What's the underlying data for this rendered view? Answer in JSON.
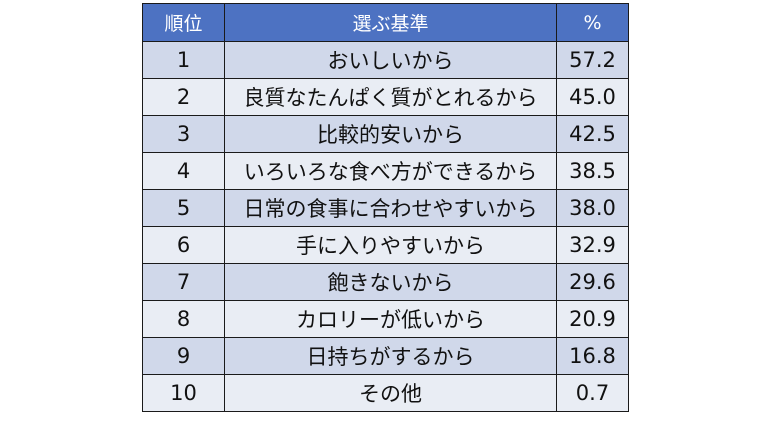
{
  "chart_data": {
    "type": "table",
    "columns": [
      "順位",
      "選ぶ基準",
      "%"
    ],
    "rows": [
      {
        "rank": "1",
        "reason": "おいしいから",
        "pct": "57.2"
      },
      {
        "rank": "2",
        "reason": "良質なたんぱく質がとれるから",
        "pct": "45.0"
      },
      {
        "rank": "3",
        "reason": "比較的安いから",
        "pct": "42.5"
      },
      {
        "rank": "4",
        "reason": "いろいろな食べ方ができるから",
        "pct": "38.5"
      },
      {
        "rank": "5",
        "reason": "日常の食事に合わせやすいから",
        "pct": "38.0"
      },
      {
        "rank": "6",
        "reason": "手に入りやすいから",
        "pct": "32.9"
      },
      {
        "rank": "7",
        "reason": "飽きないから",
        "pct": "29.6"
      },
      {
        "rank": "8",
        "reason": "カロリーが低いから",
        "pct": "20.9"
      },
      {
        "rank": "9",
        "reason": "日持ちがするから",
        "pct": "16.8"
      },
      {
        "rank": "10",
        "reason": "その他",
        "pct": "0.7"
      }
    ]
  },
  "colors": {
    "header_bg": "#4d72c2",
    "row_shaded": "#d0d8ea",
    "row_plain": "#e9edf4",
    "border": "#1a1a1a"
  }
}
